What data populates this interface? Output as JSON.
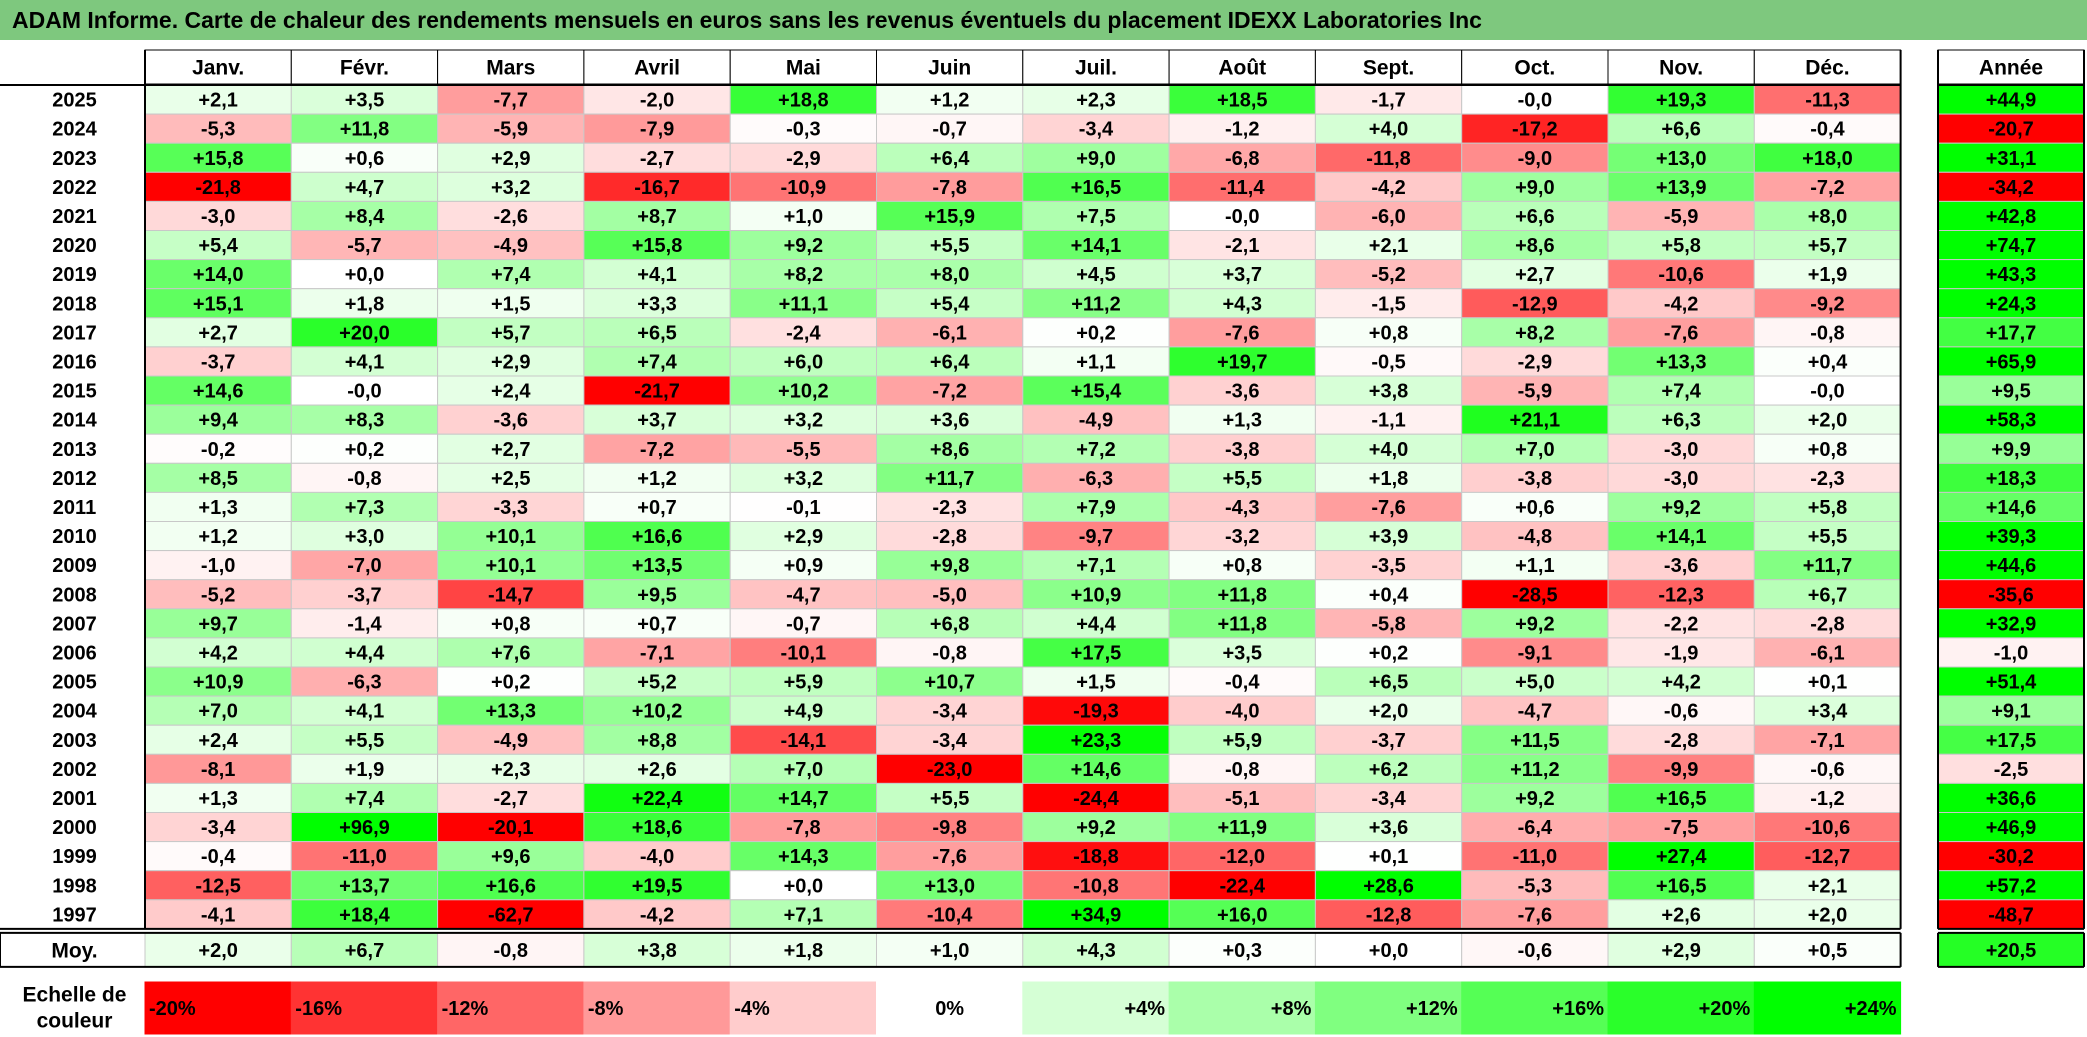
{
  "title": "ADAM Informe. Carte de chaleur des rendements mensuels en euros sans les revenus éventuels du placement IDEXX Laboratories Inc",
  "chart_data": {
    "type": "heatmap",
    "title": "ADAM Informe. Carte de chaleur des rendements mensuels en euros sans les revenus éventuels du placement IDEXX Laboratories Inc",
    "columns": [
      "Janv.",
      "Févr.",
      "Mars",
      "Avril",
      "Mai",
      "Juin",
      "Juil.",
      "Août",
      "Sept.",
      "Oct.",
      "Nov.",
      "Déc."
    ],
    "annual_header": "Année",
    "rows": [
      {
        "year": "2025",
        "values": [
          "+2,1",
          "+3,5",
          "-7,7",
          "-2,0",
          "+18,8",
          "+1,2",
          "+2,3",
          "+18,5",
          "-1,7",
          "-0,0",
          "+19,3",
          "-11,3"
        ],
        "annual": "+44,9"
      },
      {
        "year": "2024",
        "values": [
          "-5,3",
          "+11,8",
          "-5,9",
          "-7,9",
          "-0,3",
          "-0,7",
          "-3,4",
          "-1,2",
          "+4,0",
          "-17,2",
          "+6,6",
          "-0,4"
        ],
        "annual": "-20,7"
      },
      {
        "year": "2023",
        "values": [
          "+15,8",
          "+0,6",
          "+2,9",
          "-2,7",
          "-2,9",
          "+6,4",
          "+9,0",
          "-6,8",
          "-11,8",
          "-9,0",
          "+13,0",
          "+18,0"
        ],
        "annual": "+31,1"
      },
      {
        "year": "2022",
        "values": [
          "-21,8",
          "+4,7",
          "+3,2",
          "-16,7",
          "-10,9",
          "-7,8",
          "+16,5",
          "-11,4",
          "-4,2",
          "+9,0",
          "+13,9",
          "-7,2"
        ],
        "annual": "-34,2"
      },
      {
        "year": "2021",
        "values": [
          "-3,0",
          "+8,4",
          "-2,6",
          "+8,7",
          "+1,0",
          "+15,9",
          "+7,5",
          "-0,0",
          "-6,0",
          "+6,6",
          "-5,9",
          "+8,0"
        ],
        "annual": "+42,8"
      },
      {
        "year": "2020",
        "values": [
          "+5,4",
          "-5,7",
          "-4,9",
          "+15,8",
          "+9,2",
          "+5,5",
          "+14,1",
          "-2,1",
          "+2,1",
          "+8,6",
          "+5,8",
          "+5,7"
        ],
        "annual": "+74,7"
      },
      {
        "year": "2019",
        "values": [
          "+14,0",
          "+0,0",
          "+7,4",
          "+4,1",
          "+8,2",
          "+8,0",
          "+4,5",
          "+3,7",
          "-5,2",
          "+2,7",
          "-10,6",
          "+1,9"
        ],
        "annual": "+43,3"
      },
      {
        "year": "2018",
        "values": [
          "+15,1",
          "+1,8",
          "+1,5",
          "+3,3",
          "+11,1",
          "+5,4",
          "+11,2",
          "+4,3",
          "-1,5",
          "-12,9",
          "-4,2",
          "-9,2"
        ],
        "annual": "+24,3"
      },
      {
        "year": "2017",
        "values": [
          "+2,7",
          "+20,0",
          "+5,7",
          "+6,5",
          "-2,4",
          "-6,1",
          "+0,2",
          "-7,6",
          "+0,8",
          "+8,2",
          "-7,6",
          "-0,8"
        ],
        "annual": "+17,7"
      },
      {
        "year": "2016",
        "values": [
          "-3,7",
          "+4,1",
          "+2,9",
          "+7,4",
          "+6,0",
          "+6,4",
          "+1,1",
          "+19,7",
          "-0,5",
          "-2,9",
          "+13,3",
          "+0,4"
        ],
        "annual": "+65,9"
      },
      {
        "year": "2015",
        "values": [
          "+14,6",
          "-0,0",
          "+2,4",
          "-21,7",
          "+10,2",
          "-7,2",
          "+15,4",
          "-3,6",
          "+3,8",
          "-5,9",
          "+7,4",
          "-0,0"
        ],
        "annual": "+9,5"
      },
      {
        "year": "2014",
        "values": [
          "+9,4",
          "+8,3",
          "-3,6",
          "+3,7",
          "+3,2",
          "+3,6",
          "-4,9",
          "+1,3",
          "-1,1",
          "+21,1",
          "+6,3",
          "+2,0"
        ],
        "annual": "+58,3"
      },
      {
        "year": "2013",
        "values": [
          "-0,2",
          "+0,2",
          "+2,7",
          "-7,2",
          "-5,5",
          "+8,6",
          "+7,2",
          "-3,8",
          "+4,0",
          "+7,0",
          "-3,0",
          "+0,8"
        ],
        "annual": "+9,9"
      },
      {
        "year": "2012",
        "values": [
          "+8,5",
          "-0,8",
          "+2,5",
          "+1,2",
          "+3,2",
          "+11,7",
          "-6,3",
          "+5,5",
          "+1,8",
          "-3,8",
          "-3,0",
          "-2,3"
        ],
        "annual": "+18,3"
      },
      {
        "year": "2011",
        "values": [
          "+1,3",
          "+7,3",
          "-3,3",
          "+0,7",
          "-0,1",
          "-2,3",
          "+7,9",
          "-4,3",
          "-7,6",
          "+0,6",
          "+9,2",
          "+5,8"
        ],
        "annual": "+14,6"
      },
      {
        "year": "2010",
        "values": [
          "+1,2",
          "+3,0",
          "+10,1",
          "+16,6",
          "+2,9",
          "-2,8",
          "-9,7",
          "-3,2",
          "+3,9",
          "-4,8",
          "+14,1",
          "+5,5"
        ],
        "annual": "+39,3"
      },
      {
        "year": "2009",
        "values": [
          "-1,0",
          "-7,0",
          "+10,1",
          "+13,5",
          "+0,9",
          "+9,8",
          "+7,1",
          "+0,8",
          "-3,5",
          "+1,1",
          "-3,6",
          "+11,7"
        ],
        "annual": "+44,6"
      },
      {
        "year": "2008",
        "values": [
          "-5,2",
          "-3,7",
          "-14,7",
          "+9,5",
          "-4,7",
          "-5,0",
          "+10,9",
          "+11,8",
          "+0,4",
          "-28,5",
          "-12,3",
          "+6,7"
        ],
        "annual": "-35,6"
      },
      {
        "year": "2007",
        "values": [
          "+9,7",
          "-1,4",
          "+0,8",
          "+0,7",
          "-0,7",
          "+6,8",
          "+4,4",
          "+11,8",
          "-5,8",
          "+9,2",
          "-2,2",
          "-2,8"
        ],
        "annual": "+32,9"
      },
      {
        "year": "2006",
        "values": [
          "+4,2",
          "+4,4",
          "+7,6",
          "-7,1",
          "-10,1",
          "-0,8",
          "+17,5",
          "+3,5",
          "+0,2",
          "-9,1",
          "-1,9",
          "-6,1"
        ],
        "annual": "-1,0"
      },
      {
        "year": "2005",
        "values": [
          "+10,9",
          "-6,3",
          "+0,2",
          "+5,2",
          "+5,9",
          "+10,7",
          "+1,5",
          "-0,4",
          "+6,5",
          "+5,0",
          "+4,2",
          "+0,1"
        ],
        "annual": "+51,4"
      },
      {
        "year": "2004",
        "values": [
          "+7,0",
          "+4,1",
          "+13,3",
          "+10,2",
          "+4,9",
          "-3,4",
          "-19,3",
          "-4,0",
          "+2,0",
          "-4,7",
          "-0,6",
          "+3,4"
        ],
        "annual": "+9,1"
      },
      {
        "year": "2003",
        "values": [
          "+2,4",
          "+5,5",
          "-4,9",
          "+8,8",
          "-14,1",
          "-3,4",
          "+23,3",
          "+5,9",
          "-3,7",
          "+11,5",
          "-2,8",
          "-7,1"
        ],
        "annual": "+17,5"
      },
      {
        "year": "2002",
        "values": [
          "-8,1",
          "+1,9",
          "+2,3",
          "+2,6",
          "+7,0",
          "-23,0",
          "+14,6",
          "-0,8",
          "+6,2",
          "+11,2",
          "-9,9",
          "-0,6"
        ],
        "annual": "-2,5"
      },
      {
        "year": "2001",
        "values": [
          "+1,3",
          "+7,4",
          "-2,7",
          "+22,4",
          "+14,7",
          "+5,5",
          "-24,4",
          "-5,1",
          "-3,4",
          "+9,2",
          "+16,5",
          "-1,2"
        ],
        "annual": "+36,6"
      },
      {
        "year": "2000",
        "values": [
          "-3,4",
          "+96,9",
          "-20,1",
          "+18,6",
          "-7,8",
          "-9,8",
          "+9,2",
          "+11,9",
          "+3,6",
          "-6,4",
          "-7,5",
          "-10,6"
        ],
        "annual": "+46,9"
      },
      {
        "year": "1999",
        "values": [
          "-0,4",
          "-11,0",
          "+9,6",
          "-4,0",
          "+14,3",
          "-7,6",
          "-18,8",
          "-12,0",
          "+0,1",
          "-11,0",
          "+27,4",
          "-12,7"
        ],
        "annual": "-30,2"
      },
      {
        "year": "1998",
        "values": [
          "-12,5",
          "+13,7",
          "+16,6",
          "+19,5",
          "+0,0",
          "+13,0",
          "-10,8",
          "-22,4",
          "+28,6",
          "-5,3",
          "+16,5",
          "+2,1"
        ],
        "annual": "+57,2"
      },
      {
        "year": "1997",
        "values": [
          "-4,1",
          "+18,4",
          "-62,7",
          "-4,2",
          "+7,1",
          "-10,4",
          "+34,9",
          "+16,0",
          "-12,8",
          "-7,6",
          "+2,6",
          "+2,0"
        ],
        "annual": "-48,7"
      }
    ],
    "average": {
      "label": "Moy.",
      "values": [
        "+2,0",
        "+6,7",
        "-0,8",
        "+3,8",
        "+1,8",
        "+1,0",
        "+4,3",
        "+0,3",
        "+0,0",
        "-0,6",
        "+2,9",
        "+0,5"
      ],
      "annual": "+20,5"
    },
    "scale": {
      "label": "Echelle de couleur",
      "items": [
        {
          "label": "-20%",
          "value": -20
        },
        {
          "label": "-16%",
          "value": -16
        },
        {
          "label": "-12%",
          "value": -12
        },
        {
          "label": "-8%",
          "value": -8
        },
        {
          "label": "-4%",
          "value": -4
        },
        {
          "label": "0%",
          "value": 0
        },
        {
          "label": "+4%",
          "value": 4
        },
        {
          "label": "+8%",
          "value": 8
        },
        {
          "label": "+12%",
          "value": 12
        },
        {
          "label": "+16%",
          "value": 16
        },
        {
          "label": "+20%",
          "value": 20
        },
        {
          "label": "+24%",
          "value": 24
        }
      ]
    },
    "colors": {
      "negative": "#ff0000",
      "zero": "#ffffff",
      "positive": "#00ff00",
      "title_bar": "#7ec87e"
    }
  }
}
